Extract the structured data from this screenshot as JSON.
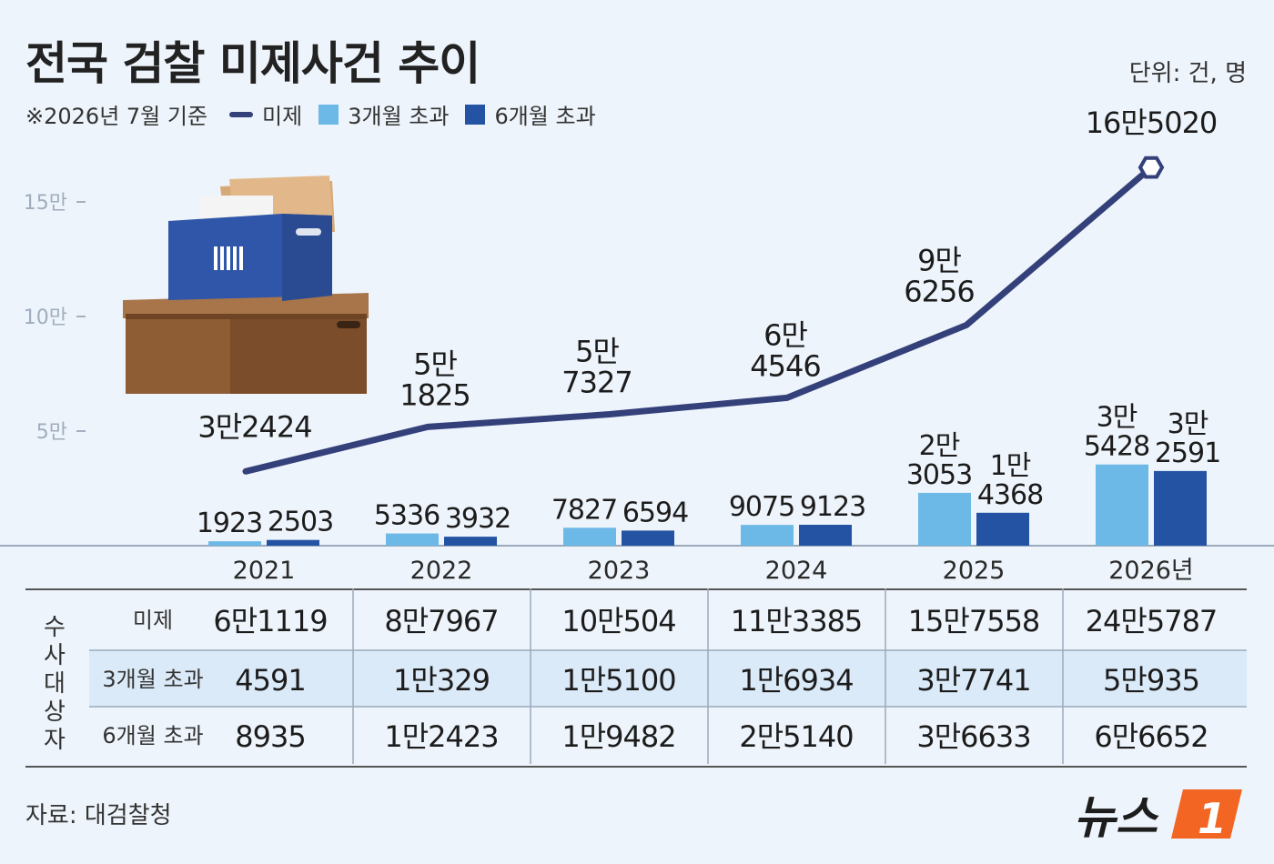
{
  "title": "전국 검찰 미제사건 추이",
  "unit": "단위: 건, 명",
  "legend": {
    "note": "※2026년 7월 기준",
    "line": "미제",
    "bar1": "3개월 초과",
    "bar2": "6개월 초과"
  },
  "colors": {
    "line": "#34407a",
    "bar1": "#6cb8e6",
    "bar2": "#2553a4"
  },
  "icon": "document-box-illustration",
  "chart_data": {
    "type": "bar+line",
    "categories": [
      "2021",
      "2022",
      "2023",
      "2024",
      "2025",
      "2026년"
    ],
    "yticks": [
      "5만",
      "10만",
      "15만"
    ],
    "ytick_values": [
      50000,
      100000,
      150000
    ],
    "ylim": [
      0,
      175000
    ],
    "line": {
      "name": "미제",
      "values": [
        32424,
        51825,
        57327,
        64546,
        96256,
        165020
      ],
      "labels": [
        [
          "3만2424"
        ],
        [
          "5만",
          "1825"
        ],
        [
          "5만",
          "7327"
        ],
        [
          "6만",
          "4546"
        ],
        [
          "9만",
          "6256"
        ],
        [
          "16만5020"
        ]
      ]
    },
    "bars": [
      {
        "name": "3개월 초과",
        "values": [
          1923,
          5336,
          7827,
          9075,
          23053,
          35428
        ],
        "labels": [
          [
            "1923"
          ],
          [
            "5336"
          ],
          [
            "7827"
          ],
          [
            "9075"
          ],
          [
            "2만",
            "3053"
          ],
          [
            "3만",
            "5428"
          ]
        ]
      },
      {
        "name": "6개월 초과",
        "values": [
          2503,
          3932,
          6594,
          9123,
          14368,
          32591
        ],
        "labels": [
          [
            "2503"
          ],
          [
            "3932"
          ],
          [
            "6594"
          ],
          [
            "9123"
          ],
          [
            "1만",
            "4368"
          ],
          [
            "3만",
            "2591"
          ]
        ]
      }
    ]
  },
  "table": {
    "group_label": "수사대상자",
    "rows": [
      {
        "label": "미제",
        "values": [
          "6만1119",
          "8만7967",
          "10만504",
          "11만3385",
          "15만7558",
          "24만5787"
        ]
      },
      {
        "label": "3개월 초과",
        "values": [
          "4591",
          "1만329",
          "1만5100",
          "1만6934",
          "3만7741",
          "5만935"
        ]
      },
      {
        "label": "6개월 초과",
        "values": [
          "8935",
          "1만2423",
          "1만9482",
          "2만5140",
          "3만6633",
          "6만6652"
        ]
      }
    ]
  },
  "source": "자료: 대검찰청",
  "logo": {
    "text": "뉴스",
    "mark": "1"
  }
}
